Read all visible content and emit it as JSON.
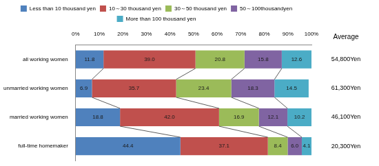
{
  "chart_data": {
    "type": "bar",
    "orientation": "horizontal",
    "stacked": true,
    "data_labels": true,
    "grid": false,
    "legend": "top",
    "categories": [
      "all working women",
      "unmarried working women",
      "married working women",
      "full-time homemaker"
    ],
    "series": [
      {
        "name": "Less than 10 thousand yen",
        "color": "#4F81BD",
        "values": [
          11.8,
          6.9,
          18.8,
          44.4
        ],
        "value_labels": [
          "11.8",
          "6.9",
          "18.8",
          "44.4"
        ]
      },
      {
        "name": "10～30 thousand yen",
        "color": "#C0504D",
        "values": [
          39.0,
          35.7,
          42.0,
          37.1
        ],
        "value_labels": [
          "39.0",
          "35.7",
          "42.0",
          "37.1"
        ]
      },
      {
        "name": "30～50 thousand yen",
        "color": "#9BBB59",
        "values": [
          20.8,
          23.4,
          16.9,
          8.4
        ],
        "value_labels": [
          "20.8",
          "23.4",
          "16.9",
          "8.4"
        ]
      },
      {
        "name": "50～100thousandyen",
        "color": "#8064A2",
        "values": [
          15.8,
          18.3,
          12.1,
          6.0
        ],
        "value_labels": [
          "15.8",
          "18.3",
          "12.1",
          "6.0"
        ]
      },
      {
        "name": "More than 100 thousand yen",
        "color": "#4BACC6",
        "values": [
          12.6,
          14.5,
          10.2,
          4.1
        ],
        "value_labels": [
          "12.6",
          "14.5",
          "10.2",
          "4.1"
        ]
      }
    ],
    "xlim": [
      0,
      100
    ],
    "xticks": [
      {
        "value": 0,
        "label": "0%"
      },
      {
        "value": 10,
        "label": "10%"
      },
      {
        "value": 20,
        "label": "20%"
      },
      {
        "value": 30,
        "label": "30%"
      },
      {
        "value": 40,
        "label": "40%"
      },
      {
        "value": 50,
        "label": "50%"
      },
      {
        "value": 60,
        "label": "60%"
      },
      {
        "value": 70,
        "label": "70%"
      },
      {
        "value": 80,
        "label": "80%"
      },
      {
        "value": 90,
        "label": "90%"
      },
      {
        "value": 100,
        "label": "100%"
      }
    ],
    "average": {
      "title": "Average",
      "values": [
        54800,
        61300,
        46100,
        20300
      ],
      "value_labels": [
        "54,800Yen",
        "61,300Yen",
        "46,100Yen",
        "20,300Yen"
      ]
    }
  }
}
